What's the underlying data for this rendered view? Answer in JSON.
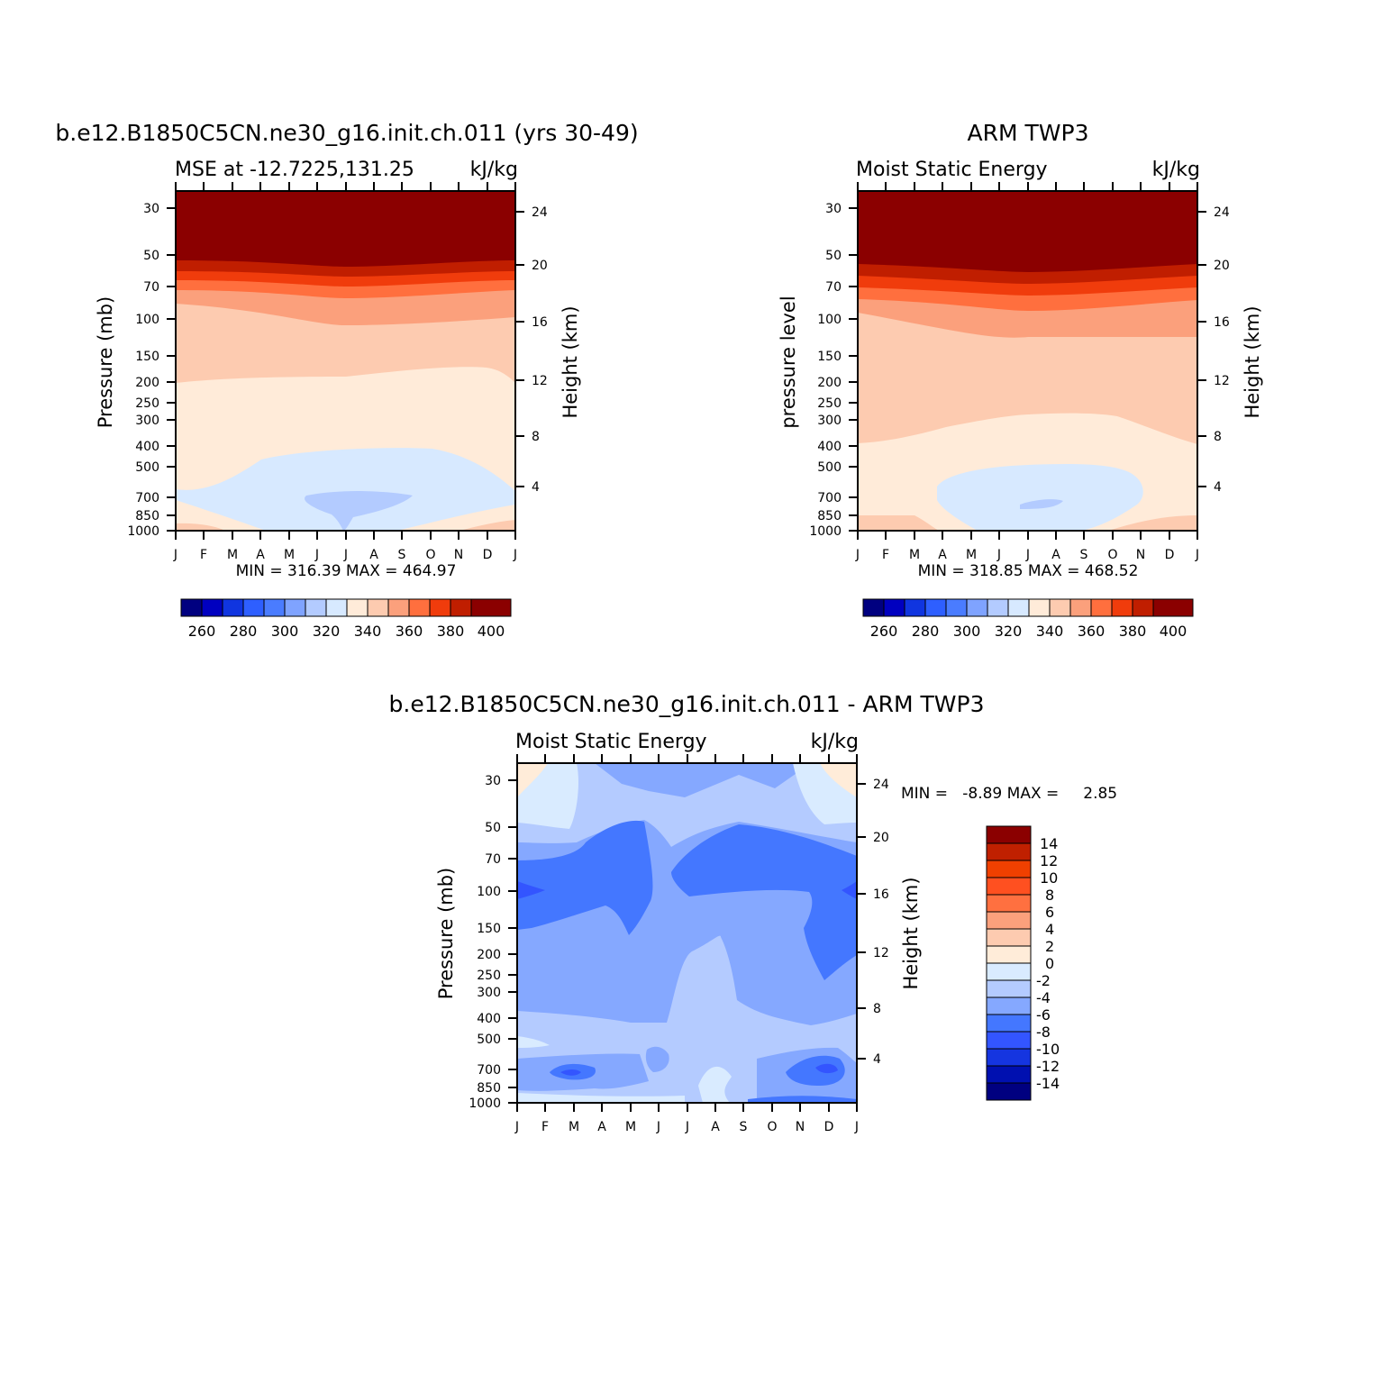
{
  "colors": {
    "mse_levels": [
      "#000080",
      "#0000c0",
      "#1035e0",
      "#2e5fff",
      "#4a7cff",
      "#7fa3ff",
      "#b3cbff",
      "#d7e9ff",
      "#ffebd9",
      "#fdcbb0",
      "#fba07c",
      "#ff6f3e",
      "#f03c0c",
      "#c01e00",
      "#8b0000"
    ],
    "diff_levels": [
      "#000080",
      "#0010b0",
      "#1535e0",
      "#3355ff",
      "#4477ff",
      "#85a8ff",
      "#b4cbff",
      "#d9ebff",
      "#ffecd9",
      "#fdcbb0",
      "#fba07c",
      "#ff7040",
      "#f04000",
      "#c02000",
      "#8b0000"
    ]
  },
  "panels": [
    {
      "id": "model",
      "title": "b.e12.B1850C5CN.ne30_g16.init.ch.011 (yrs 30-49)",
      "subtitle_left": "MSE at -12.7225,131.25",
      "subtitle_right": "kJ/kg",
      "ylabel": "Pressure (mb)",
      "ylabel_right": "Height (km)",
      "minmax": "MIN = 316.39 MAX = 464.97"
    },
    {
      "id": "obs",
      "title": "ARM TWP3",
      "subtitle_left": "Moist Static Energy",
      "subtitle_right": "kJ/kg",
      "ylabel": "pressure level",
      "ylabel_right": "Height (km)",
      "minmax": "MIN = 318.85 MAX = 468.52"
    },
    {
      "id": "diff",
      "title": "b.e12.B1850C5CN.ne30_g16.init.ch.011 - ARM TWP3",
      "subtitle_left": "Moist Static Energy",
      "subtitle_right": "kJ/kg",
      "ylabel": "Pressure (mb)",
      "ylabel_right": "Height (km)",
      "minmax": "MIN =   -8.89 MAX =     2.85"
    }
  ],
  "chart_data": [
    {
      "type": "heatmap",
      "panel": "model",
      "x": [
        "J",
        "F",
        "M",
        "A",
        "M",
        "J",
        "J",
        "A",
        "S",
        "O",
        "N",
        "D",
        "J"
      ],
      "y_pressure_ticks": [
        30,
        50,
        70,
        100,
        150,
        200,
        250,
        300,
        400,
        500,
        700,
        850,
        1000
      ],
      "y_height_ticks_km": [
        4,
        8,
        12,
        16,
        20,
        24
      ],
      "contour_levels": [
        260,
        270,
        280,
        290,
        300,
        310,
        320,
        330,
        340,
        350,
        360,
        370,
        380,
        390,
        400
      ],
      "colorbar_labels": [
        "260",
        "280",
        "300",
        "320",
        "340",
        "360",
        "380",
        "400"
      ],
      "min": 316.39,
      "max": 464.97
    },
    {
      "type": "heatmap",
      "panel": "obs",
      "x": [
        "J",
        "F",
        "M",
        "A",
        "M",
        "J",
        "J",
        "A",
        "S",
        "O",
        "N",
        "D",
        "J"
      ],
      "y_pressure_ticks": [
        30,
        50,
        70,
        100,
        150,
        200,
        250,
        300,
        400,
        500,
        700,
        850,
        1000
      ],
      "y_height_ticks_km": [
        4,
        8,
        12,
        16,
        20,
        24
      ],
      "contour_levels": [
        260,
        270,
        280,
        290,
        300,
        310,
        320,
        330,
        340,
        350,
        360,
        370,
        380,
        390,
        400
      ],
      "colorbar_labels": [
        "260",
        "280",
        "300",
        "320",
        "340",
        "360",
        "380",
        "400"
      ],
      "min": 318.85,
      "max": 468.52
    },
    {
      "type": "heatmap",
      "panel": "diff",
      "x": [
        "J",
        "F",
        "M",
        "A",
        "M",
        "J",
        "J",
        "A",
        "S",
        "O",
        "N",
        "D",
        "J"
      ],
      "y_pressure_ticks": [
        30,
        50,
        70,
        100,
        150,
        200,
        250,
        300,
        400,
        500,
        700,
        850,
        1000
      ],
      "y_height_ticks_km": [
        4,
        8,
        12,
        16,
        20,
        24
      ],
      "contour_levels": [
        -14,
        -12,
        -10,
        -8,
        -6,
        -4,
        -2,
        0,
        2,
        4,
        6,
        8,
        10,
        12,
        14
      ],
      "colorbar_labels": [
        "14",
        "12",
        "10",
        "8",
        "6",
        "4",
        "2",
        "0",
        "-2",
        "-4",
        "-6",
        "-8",
        "-10",
        "-12",
        "-14"
      ],
      "min": -8.89,
      "max": 2.85
    }
  ]
}
